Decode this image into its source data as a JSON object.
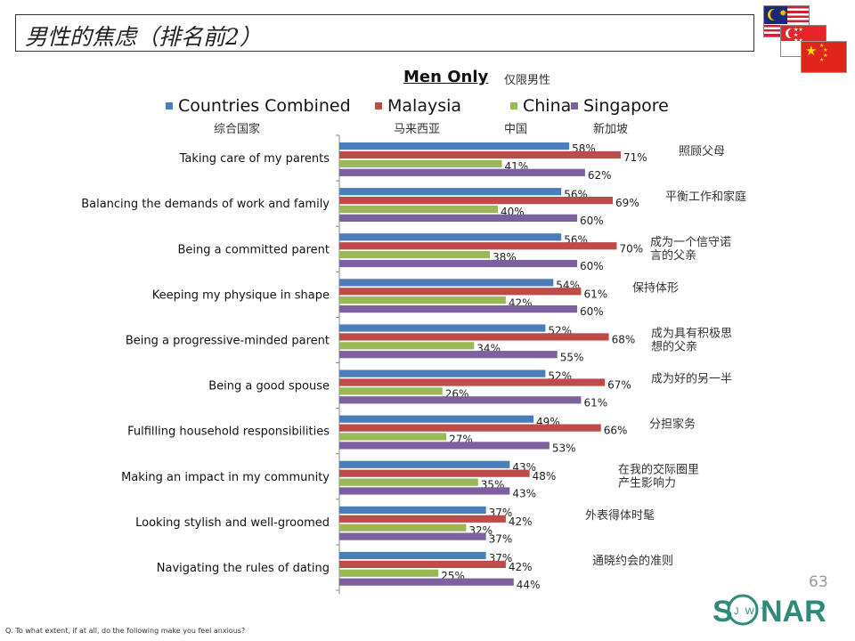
{
  "page": {
    "title": "男性的焦虑（排名前2）",
    "subtitle": "Men Only",
    "subtitle_cn": "仅限男性",
    "page_number": "63",
    "question": "Q. To what extent, if at all, do the following make you feel anxious?",
    "logo_text": "SONAR",
    "logo_sub": "JWT"
  },
  "flags": [
    {
      "name": "malaysia-flag"
    },
    {
      "name": "singapore-flag"
    },
    {
      "name": "china-flag"
    }
  ],
  "legend": [
    {
      "label": "Countries Combined",
      "label_cn": "综合国家",
      "color": "#4a7ebb"
    },
    {
      "label": "Malaysia",
      "label_cn": "马来西亚",
      "color": "#be4b48"
    },
    {
      "label": "China",
      "label_cn": "中国",
      "color": "#98b954"
    },
    {
      "label": "Singapore",
      "label_cn": "新加坡",
      "color": "#7d60a0"
    }
  ],
  "chart_data": {
    "type": "bar",
    "orientation": "horizontal",
    "categories": [
      "Taking care of my parents",
      "Balancing the demands of work and family",
      "Being a committed parent",
      "Keeping my physique in shape",
      "Being a progressive-minded parent",
      "Being a good spouse",
      "Fulfilling household responsibilities",
      "Making an impact in my community",
      "Looking stylish and well-groomed",
      "Navigating the rules of dating"
    ],
    "categories_cn": [
      "照顾父母",
      "平衡工作和家庭",
      "成为一个信守诺言的父亲",
      "保持体形",
      "成为具有积极思想的父亲",
      "成为好的另一半",
      "分担家务",
      "在我的交际圈里产生影响力",
      "外表得体时髦",
      "通晓约会的准则"
    ],
    "series": [
      {
        "name": "Countries Combined",
        "values": [
          58,
          56,
          56,
          54,
          52,
          52,
          49,
          43,
          37,
          37
        ]
      },
      {
        "name": "Malaysia",
        "values": [
          71,
          69,
          70,
          61,
          68,
          67,
          66,
          48,
          42,
          42
        ]
      },
      {
        "name": "China",
        "values": [
          41,
          40,
          38,
          42,
          34,
          26,
          27,
          35,
          32,
          25
        ]
      },
      {
        "name": "Singapore",
        "values": [
          62,
          60,
          60,
          60,
          55,
          61,
          53,
          43,
          37,
          44
        ]
      }
    ],
    "value_suffix": "%",
    "xlim": [
      0,
      100
    ],
    "grid": false,
    "legend_position": "top"
  }
}
